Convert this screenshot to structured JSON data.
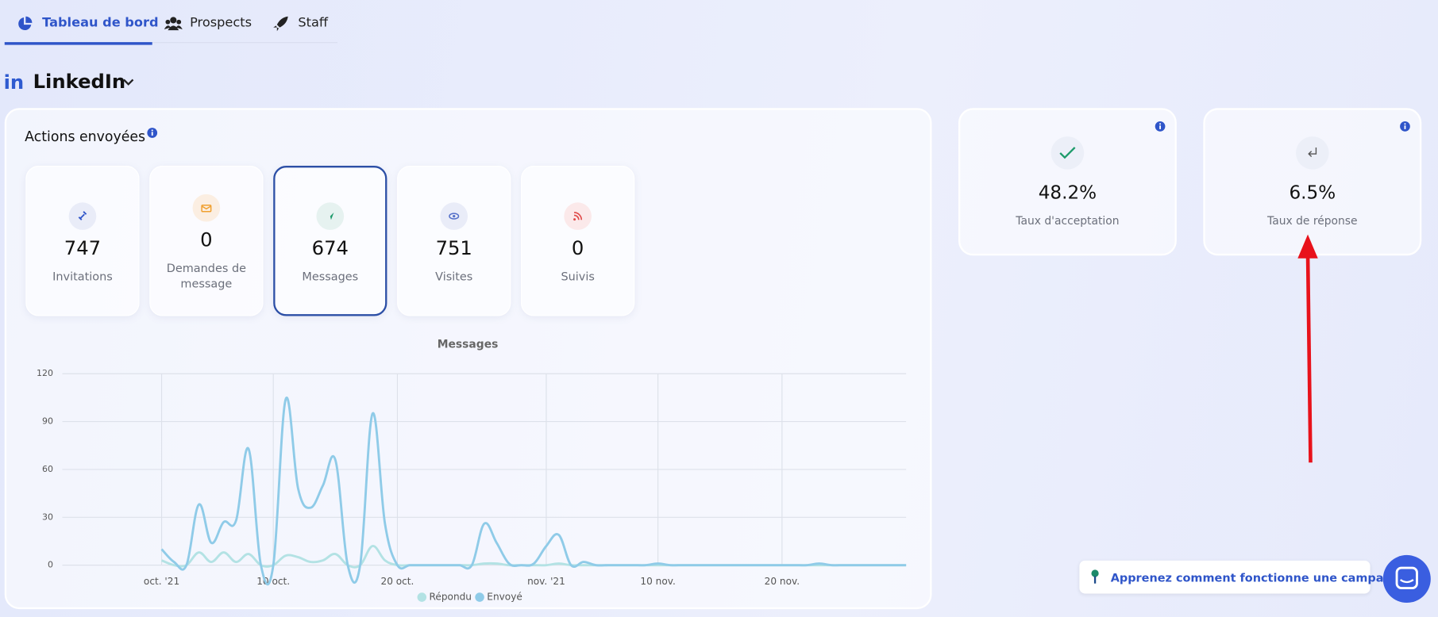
{
  "nav": {
    "tabs": [
      "Tableau de bord",
      "Prospects",
      "Staff"
    ]
  },
  "network_logo": "in",
  "network": "LinkedIn",
  "actions": {
    "title": "Actions envoyées",
    "stats": [
      {
        "value": 747,
        "label": "Invitations"
      },
      {
        "value": 0,
        "label": "Demandes de message"
      },
      {
        "value": 674,
        "label": "Messages"
      },
      {
        "value": 751,
        "label": "Visites"
      },
      {
        "value": 0,
        "label": "Suivis"
      }
    ]
  },
  "rates": [
    {
      "value": "48.2%",
      "label": "Taux d'acceptation"
    },
    {
      "value": "6.5%",
      "label": "Taux de réponse"
    }
  ],
  "help_link": "Apprenez comment fonctionne une campagne !",
  "chart_data": {
    "type": "line",
    "title": "Messages",
    "x": [
      "2021-10-01",
      "2021-10-02",
      "2021-10-03",
      "2021-10-04",
      "2021-10-05",
      "2021-10-06",
      "2021-10-07",
      "2021-10-08",
      "2021-10-09",
      "2021-10-10",
      "2021-10-11",
      "2021-10-12",
      "2021-10-13",
      "2021-10-14",
      "2021-10-15",
      "2021-10-16",
      "2021-10-17",
      "2021-10-18",
      "2021-10-19",
      "2021-10-20",
      "2021-10-21",
      "2021-10-22",
      "2021-10-23",
      "2021-10-24",
      "2021-10-25",
      "2021-10-26",
      "2021-10-27",
      "2021-10-28",
      "2021-10-29",
      "2021-10-30",
      "2021-10-31",
      "2021-11-01",
      "2021-11-02",
      "2021-11-03",
      "2021-11-04",
      "2021-11-05",
      "2021-11-06",
      "2021-11-07",
      "2021-11-08",
      "2021-11-09",
      "2021-11-10",
      "2021-11-11",
      "2021-11-12",
      "2021-11-13",
      "2021-11-14",
      "2021-11-15",
      "2021-11-16",
      "2021-11-17",
      "2021-11-18",
      "2021-11-19",
      "2021-11-20",
      "2021-11-21",
      "2021-11-22",
      "2021-11-23",
      "2021-11-24",
      "2021-11-25",
      "2021-11-26",
      "2021-11-27",
      "2021-11-28",
      "2021-11-29",
      "2021-11-30"
    ],
    "series": [
      {
        "name": "Répondu",
        "color": "#b3e2e4",
        "values": [
          3,
          0,
          0,
          8,
          2,
          8,
          2,
          7,
          0,
          0,
          6,
          5,
          2,
          3,
          7,
          0,
          0,
          12,
          3,
          0,
          0,
          0,
          0,
          0,
          0,
          0,
          1,
          1,
          0,
          0,
          0,
          0,
          1,
          0,
          0,
          0,
          0,
          0,
          0,
          0,
          0,
          0,
          0,
          0,
          0,
          0,
          0,
          0,
          0,
          0,
          0,
          0,
          0,
          0,
          0,
          0,
          0,
          0,
          0,
          0,
          0
        ]
      },
      {
        "name": "Envoyé",
        "color": "#8fcbe8",
        "values": [
          10,
          2,
          0,
          38,
          14,
          27,
          28,
          73,
          0,
          0,
          104,
          48,
          36,
          50,
          66,
          0,
          0,
          95,
          26,
          0,
          0,
          0,
          0,
          0,
          0,
          0,
          26,
          14,
          1,
          0,
          1,
          12,
          19,
          0,
          2,
          0,
          0,
          0,
          0,
          0,
          1,
          0,
          0,
          0,
          0,
          0,
          0,
          0,
          0,
          0,
          0,
          0,
          0,
          1,
          0,
          0,
          0,
          0,
          0,
          0,
          0
        ]
      }
    ],
    "xlim": [
      "2021-09-23",
      "2021-11-30"
    ],
    "xticks": [
      {
        "value": "2021-10-01",
        "label": "oct. '21"
      },
      {
        "value": "2021-10-10",
        "label": "10 oct."
      },
      {
        "value": "2021-10-20",
        "label": "20 oct."
      },
      {
        "value": "2021-11-01",
        "label": "nov. '21"
      },
      {
        "value": "2021-11-10",
        "label": "10 nov."
      },
      {
        "value": "2021-11-20",
        "label": "20 nov."
      }
    ],
    "ylim": [
      0,
      120
    ],
    "yticks": [
      0,
      30,
      60,
      90,
      120
    ],
    "grid": true
  }
}
